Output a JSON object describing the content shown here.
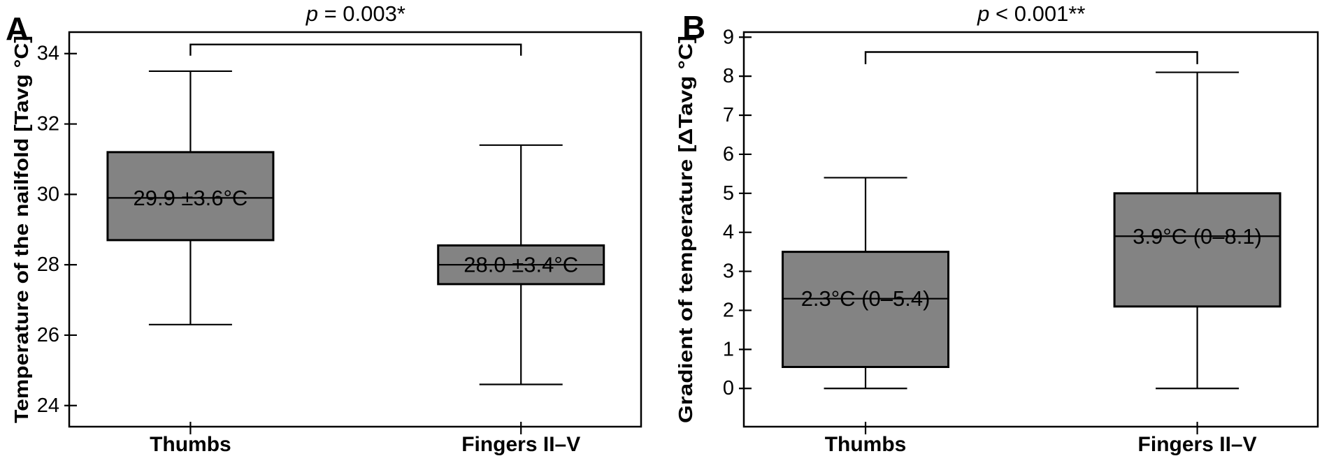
{
  "page": {
    "background": "#ffffff"
  },
  "style": {
    "box_fill": "#838383",
    "line_color": "#000000",
    "text_color": "#000000"
  },
  "chart_data": [
    {
      "type": "boxplot",
      "panel_letter": "A",
      "p_value": {
        "symbol": "p",
        "text": " = 0.003*"
      },
      "ylabel": "Temperature of the nailfold [Tavg °C]",
      "categories": [
        "Thumbs",
        "Fingers II–V"
      ],
      "ylim": [
        23.4,
        34.61
      ],
      "yticks": [
        24,
        26,
        28,
        30,
        32,
        34
      ],
      "grid": false,
      "boxes": [
        {
          "category": "Thumbs",
          "whisker_low": 26.3,
          "q1": 28.7,
          "median": 29.9,
          "q3": 31.2,
          "whisker_high": 33.5,
          "label": "29.9 ±3.6°C"
        },
        {
          "category": "Fingers II–V",
          "whisker_low": 24.6,
          "q1": 27.45,
          "median": 28.0,
          "q3": 28.55,
          "whisker_high": 31.4,
          "label": "28.0 ±3.4°C"
        }
      ],
      "bracket": {
        "y": 34.26,
        "drop_to": 33.94
      }
    },
    {
      "type": "boxplot",
      "panel_letter": "B",
      "p_value": {
        "symbol": "p",
        "text": " < 0.001**"
      },
      "ylabel": "Gradient of temperature [ΔTavg °C]",
      "categories": [
        "Thumbs",
        "Fingers II–V"
      ],
      "ylim": [
        -0.98,
        9.13
      ],
      "yticks": [
        0,
        1,
        2,
        3,
        4,
        5,
        6,
        7,
        8,
        9
      ],
      "grid": false,
      "boxes": [
        {
          "category": "Thumbs",
          "whisker_low": 0.0,
          "q1": 0.55,
          "median": 2.3,
          "q3": 3.5,
          "whisker_high": 5.4,
          "label": "2.3°C (0–5.4)"
        },
        {
          "category": "Fingers II–V",
          "whisker_low": 0.0,
          "q1": 2.1,
          "median": 3.9,
          "q3": 5.0,
          "whisker_high": 8.1,
          "label": "3.9°C (0–8.1)"
        }
      ],
      "bracket": {
        "y": 8.62,
        "drop_to": 8.31
      }
    }
  ]
}
